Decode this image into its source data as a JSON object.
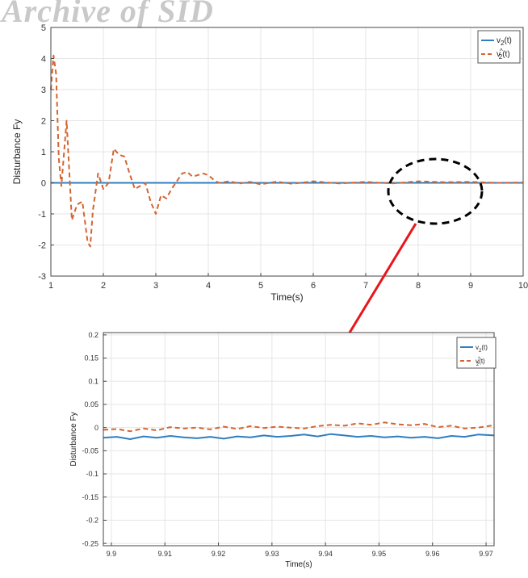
{
  "watermark": "Archive of SID",
  "colors": {
    "v2": "#2f7fc1",
    "v2hat": "#d4652f",
    "arrow": "#e8161b",
    "grid": "#e6e6e6",
    "axis": "#444444"
  },
  "chart_data": [
    {
      "type": "line",
      "xlabel": "Time(s)",
      "ylabel": "Disturbance Fy",
      "xlim": [
        1,
        10
      ],
      "ylim": [
        -3,
        5
      ],
      "xticks": [
        "1",
        "2",
        "3",
        "4",
        "5",
        "6",
        "7",
        "8",
        "9",
        "10"
      ],
      "yticks": [
        "-3",
        "-2",
        "-1",
        "0",
        "1",
        "2",
        "3",
        "4",
        "5"
      ],
      "grid": true,
      "legend_position": "top-right",
      "series": [
        {
          "name": "v2(t)",
          "label_main": "v",
          "label_sub": "2",
          "label_tail": "(t)",
          "style": "solid",
          "x": [
            1,
            10
          ],
          "y": [
            0,
            0
          ]
        },
        {
          "name": "v2^(t)",
          "label_main": "v",
          "label_sub": "2",
          "label_sup": "^",
          "label_tail": "(t)",
          "style": "dashed",
          "x": [
            1.0,
            1.05,
            1.1,
            1.15,
            1.2,
            1.3,
            1.4,
            1.5,
            1.6,
            1.7,
            1.75,
            1.8,
            1.9,
            2.0,
            2.1,
            2.2,
            2.3,
            2.4,
            2.5,
            2.6,
            2.7,
            2.8,
            2.9,
            3.0,
            3.1,
            3.2,
            3.3,
            3.5,
            3.6,
            3.7,
            3.8,
            3.9,
            4.0,
            4.1,
            4.2,
            4.4,
            4.6,
            4.8,
            5.0,
            5.3,
            5.6,
            6.0,
            6.5,
            7.0,
            7.5,
            8.0,
            8.5,
            9.0,
            9.5,
            10.0
          ],
          "y": [
            3.0,
            4.1,
            3.5,
            0.8,
            -0.1,
            2.0,
            -1.2,
            -0.7,
            -0.6,
            -1.9,
            -2.05,
            -0.9,
            0.3,
            -0.2,
            0.0,
            1.1,
            0.9,
            0.85,
            0.3,
            -0.2,
            -0.1,
            0.0,
            -0.6,
            -1.0,
            -0.4,
            -0.5,
            -0.2,
            0.3,
            0.35,
            0.2,
            0.25,
            0.3,
            0.25,
            0.1,
            0.0,
            0.05,
            -0.02,
            0.03,
            -0.05,
            0.04,
            -0.03,
            0.05,
            -0.02,
            0.03,
            -0.02,
            0.05,
            0.02,
            0.03,
            0.0,
            0.01
          ]
        }
      ]
    },
    {
      "type": "line",
      "xlabel": "Time(s)",
      "ylabel": "Disturbance Fy",
      "xlim": [
        9.8985,
        9.9715
      ],
      "ylim": [
        -0.255,
        0.205
      ],
      "xticks": [
        "9.9",
        "9.91",
        "9.92",
        "9.93",
        "9.94",
        "9.95",
        "9.96",
        "9.97"
      ],
      "xtick_values": [
        9.9,
        9.91,
        9.92,
        9.93,
        9.94,
        9.95,
        9.96,
        9.97
      ],
      "yticks": [
        "0.2",
        "0.15",
        "0.1",
        "0.05",
        "0",
        "-0.05",
        "-0.1",
        "-0.15",
        "-0.2",
        "-0.25"
      ],
      "ytick_values": [
        0.2,
        0.15,
        0.1,
        0.05,
        0,
        -0.05,
        -0.1,
        -0.15,
        -0.2,
        -0.25
      ],
      "grid": true,
      "legend_position": "top-right",
      "series": [
        {
          "name": "v2(t)",
          "label_main": "v",
          "label_sub": "2",
          "label_tail": "(t)",
          "style": "solid",
          "x": [
            9.8985,
            9.901,
            9.9035,
            9.906,
            9.9085,
            9.911,
            9.9135,
            9.916,
            9.9185,
            9.921,
            9.9235,
            9.926,
            9.9285,
            9.931,
            9.9335,
            9.936,
            9.9385,
            9.941,
            9.9435,
            9.946,
            9.9485,
            9.951,
            9.9535,
            9.956,
            9.9585,
            9.961,
            9.9635,
            9.966,
            9.9685,
            9.9715
          ],
          "y": [
            -0.022,
            -0.02,
            -0.025,
            -0.019,
            -0.022,
            -0.018,
            -0.021,
            -0.023,
            -0.02,
            -0.024,
            -0.019,
            -0.021,
            -0.017,
            -0.02,
            -0.018,
            -0.015,
            -0.019,
            -0.014,
            -0.017,
            -0.02,
            -0.018,
            -0.021,
            -0.019,
            -0.022,
            -0.02,
            -0.023,
            -0.018,
            -0.02,
            -0.015,
            -0.017
          ]
        },
        {
          "name": "v2^(t)",
          "label_main": "v",
          "label_sub": "2",
          "label_sup": "^",
          "label_tail": "(t)",
          "style": "dashed",
          "x": [
            9.8985,
            9.901,
            9.9035,
            9.906,
            9.9085,
            9.911,
            9.9135,
            9.916,
            9.9185,
            9.921,
            9.9235,
            9.926,
            9.9285,
            9.931,
            9.9335,
            9.936,
            9.9385,
            9.941,
            9.9435,
            9.946,
            9.9485,
            9.951,
            9.9535,
            9.956,
            9.9585,
            9.961,
            9.9635,
            9.966,
            9.9685,
            9.9715
          ],
          "y": [
            -0.005,
            -0.003,
            -0.008,
            -0.002,
            -0.006,
            0.001,
            -0.002,
            0.0,
            -0.004,
            0.002,
            -0.003,
            0.003,
            -0.001,
            0.002,
            0.0,
            -0.002,
            0.003,
            0.006,
            0.004,
            0.009,
            0.006,
            0.011,
            0.007,
            0.005,
            0.008,
            0.001,
            0.004,
            -0.002,
            0.0,
            0.005
          ]
        }
      ]
    }
  ]
}
